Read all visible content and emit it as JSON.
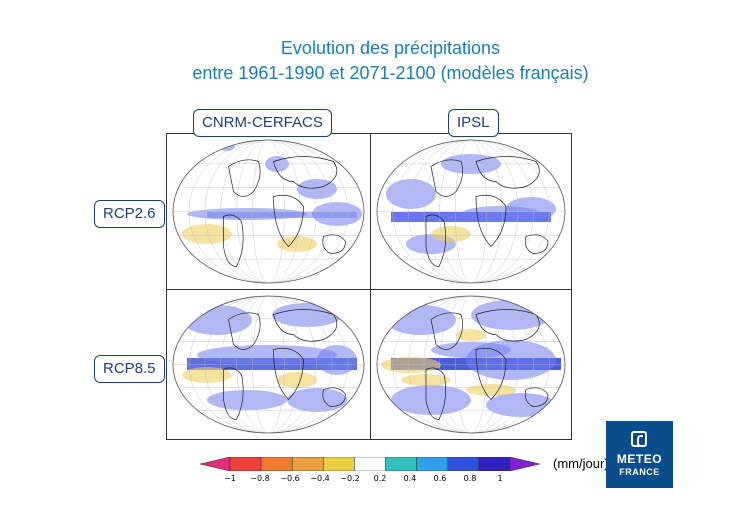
{
  "title": {
    "line1": "Evolution des précipitations",
    "line2": "entre 1961-1990 et 2071-2100 (modèles français)"
  },
  "columns": [
    "CNRM-CERFACS",
    "IPSL"
  ],
  "rows": [
    "RCP2.6",
    "RCP8.5"
  ],
  "colorbar": {
    "ticks": [
      "−1",
      "−0.8",
      "−0.6",
      "−0.4",
      "−0.2",
      "0.2",
      "0.4",
      "0.6",
      "0.8",
      "1"
    ],
    "unit": "(mm/jour)",
    "colors": [
      "#e0307a",
      "#ef4040",
      "#f07a30",
      "#e8a040",
      "#e8d040",
      "#ffffff",
      "#30c0c0",
      "#30a0e8",
      "#3050e0",
      "#3020c0",
      "#8020d0"
    ]
  },
  "logo": {
    "line1": "METEO",
    "line2": "FRANCE"
  },
  "palette": {
    "title": "#1a7fb5",
    "label": "#1f3f7a",
    "logo_bg": "#0a4d8c"
  }
}
